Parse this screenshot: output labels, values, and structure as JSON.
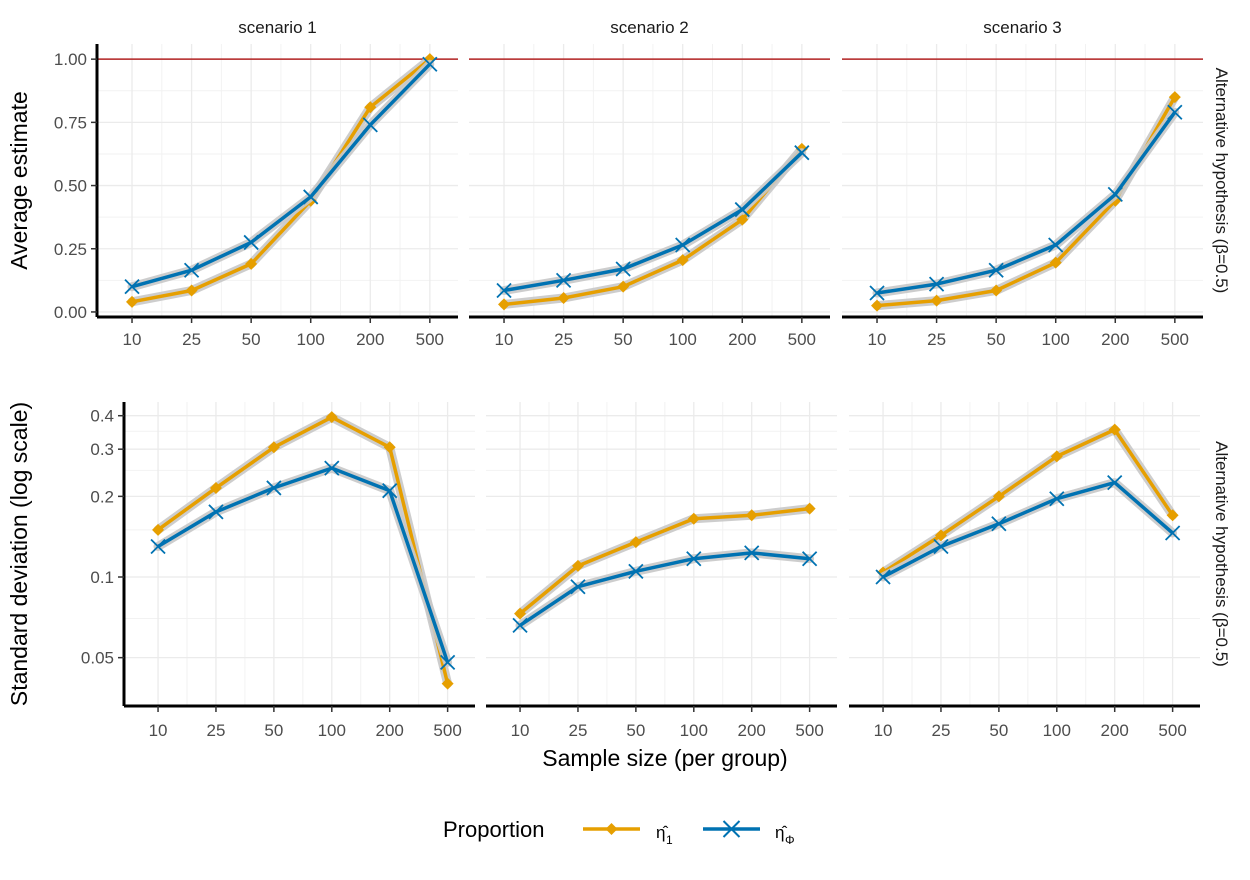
{
  "chart_data": {
    "type": "line",
    "x_categories": [
      "10",
      "25",
      "50",
      "100",
      "200",
      "500"
    ],
    "xlabel": "Sample size (per group)",
    "panel_columns": [
      "scenario 1",
      "scenario 2",
      "scenario 3"
    ],
    "row_strip_label": "Alternative hypothesis (β=0.5)",
    "legend": {
      "title": "Proportion",
      "position": "bottom",
      "entries": [
        {
          "key": "eta1",
          "label": "η̂",
          "subscript": "1",
          "color": "#E69F00",
          "marker": "diamond"
        },
        {
          "key": "etaphi",
          "label": "η̂",
          "subscript": "Φ",
          "color": "#0072B2",
          "marker": "x"
        }
      ]
    },
    "rows": [
      {
        "ylabel": "Average estimate",
        "scale": "linear",
        "ylim": [
          -0.02,
          1.06
        ],
        "yticks": [
          0,
          0.25,
          0.5,
          0.75,
          1
        ],
        "ytick_labels": [
          "0.00",
          "0.25",
          "0.50",
          "0.75",
          "1.00"
        ],
        "reference_line": {
          "y": 1.0,
          "color": "#B22222"
        },
        "panels": [
          {
            "eta1": [
              0.04,
              0.085,
              0.19,
              0.44,
              0.81,
              1.0
            ],
            "etaphi": [
              0.1,
              0.165,
              0.275,
              0.455,
              0.74,
              0.98
            ]
          },
          {
            "eta1": [
              0.03,
              0.055,
              0.1,
              0.205,
              0.365,
              0.645
            ],
            "etaphi": [
              0.085,
              0.125,
              0.17,
              0.265,
              0.405,
              0.63
            ]
          },
          {
            "eta1": [
              0.025,
              0.045,
              0.085,
              0.195,
              0.44,
              0.85
            ],
            "etaphi": [
              0.075,
              0.11,
              0.165,
              0.265,
              0.465,
              0.79
            ]
          }
        ]
      },
      {
        "ylabel": "Standard deviation (log scale)",
        "scale": "log",
        "ylim": [
          0.033,
          0.45
        ],
        "yticks": [
          0.05,
          0.1,
          0.2,
          0.3,
          0.4
        ],
        "ytick_labels": [
          "0.05",
          "0.1",
          "0.2",
          "0.3",
          "0.4"
        ],
        "panels": [
          {
            "eta1": [
              0.15,
              0.215,
              0.305,
              0.395,
              0.305,
              0.04
            ],
            "etaphi": [
              0.13,
              0.175,
              0.215,
              0.255,
              0.21,
              0.048
            ]
          },
          {
            "eta1": [
              0.073,
              0.11,
              0.135,
              0.165,
              0.17,
              0.18
            ],
            "etaphi": [
              0.066,
              0.092,
              0.105,
              0.117,
              0.123,
              0.117
            ]
          },
          {
            "eta1": [
              0.104,
              0.143,
              0.2,
              0.282,
              0.355,
              0.17
            ],
            "etaphi": [
              0.1,
              0.13,
              0.158,
              0.196,
              0.225,
              0.146
            ]
          }
        ]
      }
    ]
  }
}
